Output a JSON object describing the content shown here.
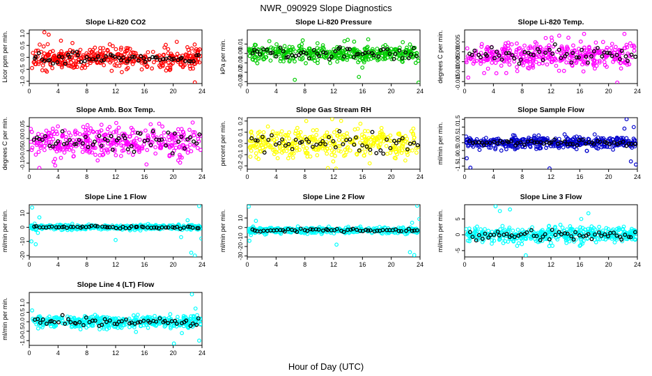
{
  "figure": {
    "title": "NWR_090929  Slope Diagnostics",
    "xlabel": "Hour of Day (UTC)"
  },
  "chart_data": [
    {
      "type": "scatter",
      "title": "Slope Li-820 CO2",
      "ylabel": "Licor ppm per min.",
      "color": "#ff0000",
      "xlim": [
        0,
        24
      ],
      "ylim": [
        -1.1,
        1.15
      ],
      "xticks": [
        0,
        4,
        8,
        12,
        16,
        20,
        24
      ],
      "yticks": [
        -1.0,
        -0.5,
        0.0,
        0.5,
        1.0
      ],
      "ytick_labels": [
        "-1.0",
        "-0.5",
        "0.0",
        "0.5",
        "1.0"
      ],
      "center": -0.05,
      "spread": 0.22,
      "black_spread": 0.12,
      "n_points": 380,
      "n_black": 60,
      "outliers": [
        [
          2.1,
          1.05
        ],
        [
          2.7,
          0.95
        ],
        [
          2.3,
          -0.55
        ],
        [
          3.2,
          -0.45
        ],
        [
          4.4,
          0.7
        ],
        [
          6.0,
          0.6
        ],
        [
          7.3,
          -0.45
        ],
        [
          19.6,
          -0.45
        ],
        [
          23.0,
          -1.05
        ],
        [
          20.5,
          0.65
        ]
      ]
    },
    {
      "type": "scatter",
      "title": "Slope Li-820 Pressure",
      "ylabel": "kPa per min.",
      "color": "#00cc00",
      "xlim": [
        0,
        24
      ],
      "ylim": [
        -0.032,
        0.025
      ],
      "xticks": [
        0,
        4,
        8,
        12,
        16,
        20,
        24
      ],
      "yticks": [
        -0.03,
        -0.02,
        -0.01,
        0.0,
        0.01
      ],
      "ytick_labels": [
        "-0.03",
        "-0.02",
        "-0.01",
        "0.00",
        "0.01"
      ],
      "center": 0.0,
      "spread": 0.0045,
      "black_spread": 0.003,
      "n_points": 380,
      "n_black": 55,
      "outliers": [
        [
          6.6,
          -0.028
        ],
        [
          15.5,
          -0.025
        ],
        [
          23.8,
          -0.031
        ],
        [
          7.7,
          0.014
        ],
        [
          16.8,
          0.015
        ],
        [
          21.6,
          0.012
        ],
        [
          13.5,
          0.013
        ],
        [
          23.4,
          -0.01
        ]
      ]
    },
    {
      "type": "scatter",
      "title": "Slope Li-820 Temp.",
      "ylabel": "degrees C per min.",
      "color": "#ff00ff",
      "xlim": [
        0,
        24
      ],
      "ylim": [
        -0.016,
        0.011
      ],
      "xticks": [
        0,
        4,
        8,
        12,
        16,
        20,
        24
      ],
      "yticks": [
        -0.015,
        -0.01,
        -0.005,
        0.0,
        0.005
      ],
      "ytick_labels": [
        "-0.015",
        "-0.010",
        "-0.005",
        "0.000",
        "0.005"
      ],
      "center": -0.002,
      "spread": 0.0035,
      "black_spread": 0.002,
      "n_points": 380,
      "n_black": 55,
      "outliers": [
        [
          21.2,
          -0.0155
        ],
        [
          16.6,
          0.009
        ],
        [
          22.2,
          0.009
        ],
        [
          0.5,
          -0.013
        ]
      ]
    },
    {
      "type": "scatter",
      "title": "Slope Amb. Box Temp.",
      "ylabel": "degrees C per min.",
      "color": "#ff00ff",
      "xlim": [
        0,
        24
      ],
      "ylim": [
        -0.125,
        0.085
      ],
      "xticks": [
        0,
        4,
        8,
        12,
        16,
        20,
        24
      ],
      "yticks": [
        -0.1,
        -0.05,
        0.0,
        0.05
      ],
      "ytick_labels": [
        "-0.10",
        "-0.05",
        "0.00",
        "0.05"
      ],
      "center": -0.01,
      "spread": 0.03,
      "black_spread": 0.02,
      "n_points": 380,
      "n_black": 55,
      "outliers": [
        [
          1.4,
          -0.12
        ],
        [
          3.6,
          -0.11
        ],
        [
          22.7,
          0.065
        ]
      ]
    },
    {
      "type": "scatter",
      "title": "Slope Gas Stream RH",
      "ylabel": "percent per min.",
      "color": "#ffff00",
      "xlim": [
        0,
        24
      ],
      "ylim": [
        -0.23,
        0.23
      ],
      "xticks": [
        0,
        4,
        8,
        12,
        16,
        20,
        24
      ],
      "yticks": [
        -0.2,
        -0.1,
        0.0,
        0.1,
        0.2
      ],
      "ytick_labels": [
        "-0.2",
        "-0.1",
        "0.0",
        "0.1",
        "0.2"
      ],
      "center": 0.0,
      "spread": 0.07,
      "black_spread": 0.05,
      "n_points": 380,
      "n_black": 50,
      "outliers": [
        [
          11.2,
          -0.22
        ],
        [
          8.2,
          0.2
        ]
      ]
    },
    {
      "type": "scatter",
      "title": "Slope Sample Flow",
      "ylabel": "ml/min per min.",
      "color": "#0000cc",
      "xlim": [
        0,
        24
      ],
      "ylim": [
        -1.7,
        1.6
      ],
      "xticks": [
        0,
        4,
        8,
        12,
        16,
        20,
        24
      ],
      "yticks": [
        -1.5,
        -1.0,
        -0.5,
        0.0,
        0.5,
        1.0,
        1.5
      ],
      "ytick_labels": [
        "-1.5",
        "-1.0",
        "-0.5",
        "0.0",
        "0.5",
        "1.0",
        "1.5"
      ],
      "center": 0.0,
      "spread": 0.18,
      "black_spread": 0.1,
      "n_points": 420,
      "n_black": 55,
      "outliers": [
        [
          0.8,
          -1.6
        ],
        [
          0.3,
          -1.0
        ],
        [
          11.8,
          -1.65
        ],
        [
          22.5,
          1.5
        ],
        [
          23.5,
          1.0
        ],
        [
          23.1,
          -1.2
        ],
        [
          23.8,
          -1.4
        ],
        [
          22.2,
          0.9
        ]
      ]
    },
    {
      "type": "scatter",
      "title": "Slope Line 1 Flow",
      "ylabel": "ml/min per min.",
      "color": "#00ffff",
      "xlim": [
        0,
        24
      ],
      "ylim": [
        -21,
        16
      ],
      "xticks": [
        0,
        4,
        8,
        12,
        16,
        20,
        24
      ],
      "yticks": [
        -20,
        -10,
        0,
        10
      ],
      "ytick_labels": [
        "-20",
        "-10",
        "0",
        "10"
      ],
      "center": 0.0,
      "spread": 0.9,
      "black_spread": 0.4,
      "n_points": 420,
      "n_black": 55,
      "outliers": [
        [
          0.4,
          14
        ],
        [
          0.3,
          -10
        ],
        [
          0.9,
          -12
        ],
        [
          1.2,
          -4
        ],
        [
          1.4,
          7
        ],
        [
          12.0,
          -9
        ],
        [
          21.1,
          -7
        ],
        [
          22.5,
          -18
        ],
        [
          23.0,
          -20
        ],
        [
          23.6,
          15
        ],
        [
          23.9,
          -8
        ],
        [
          22.0,
          5
        ]
      ]
    },
    {
      "type": "scatter",
      "title": "Slope Line 2 Flow",
      "ylabel": "ml/min per min.",
      "color": "#00ffff",
      "xlim": [
        0,
        24
      ],
      "ylim": [
        -31,
        24
      ],
      "xticks": [
        0,
        4,
        8,
        12,
        16,
        20,
        24
      ],
      "yticks": [
        -30,
        -20,
        -10,
        0,
        10
      ],
      "ytick_labels": [
        "-30",
        "-20",
        "-10",
        "0",
        "10"
      ],
      "center": -3,
      "spread": 1.5,
      "black_spread": 0.8,
      "n_points": 420,
      "n_black": 55,
      "outliers": [
        [
          0.2,
          22
        ],
        [
          0.3,
          -14
        ],
        [
          0.5,
          -8
        ],
        [
          1.2,
          7
        ],
        [
          12.4,
          -18
        ],
        [
          22.6,
          -26
        ],
        [
          23.2,
          -29
        ],
        [
          23.6,
          23
        ],
        [
          23.9,
          9
        ],
        [
          22.9,
          5
        ]
      ]
    },
    {
      "type": "scatter",
      "title": "Slope Line 3 Flow",
      "ylabel": "ml/min per min.",
      "color": "#00ffff",
      "xlim": [
        0,
        24
      ],
      "ylim": [
        -7,
        9.5
      ],
      "xticks": [
        0,
        4,
        8,
        12,
        16,
        20,
        24
      ],
      "yticks": [
        -5,
        0,
        5
      ],
      "ytick_labels": [
        "-5",
        "0",
        "5"
      ],
      "center": 0.0,
      "spread": 1.2,
      "black_spread": 0.8,
      "n_points": 420,
      "n_black": 55,
      "outliers": [
        [
          4.3,
          9
        ],
        [
          4.9,
          7.5
        ],
        [
          6.3,
          8
        ],
        [
          8.5,
          -6.5
        ],
        [
          7.3,
          -3.5
        ],
        [
          12.2,
          -3.5
        ],
        [
          17.2,
          6.8
        ],
        [
          16.2,
          5
        ]
      ]
    },
    {
      "type": "scatter",
      "title": "Slope Line 4 (LT) Flow",
      "ylabel": "ml/min per min.",
      "color": "#00ffff",
      "xlim": [
        0,
        24
      ],
      "ylim": [
        -1.25,
        1.55
      ],
      "xticks": [
        0,
        4,
        8,
        12,
        16,
        20,
        24
      ],
      "yticks": [
        -1.0,
        -0.5,
        0.0,
        0.5,
        1.0
      ],
      "ytick_labels": [
        "-1.0",
        "-0.5",
        "0.0",
        "0.5",
        "1.0"
      ],
      "center": 0.0,
      "spread": 0.16,
      "black_spread": 0.12,
      "n_points": 420,
      "n_black": 55,
      "outliers": [
        [
          0.4,
          0.6
        ],
        [
          20.1,
          -1.15
        ],
        [
          22.6,
          1.45
        ],
        [
          23.6,
          -1.0
        ],
        [
          23.1,
          0.7
        ],
        [
          21.2,
          -0.6
        ]
      ]
    }
  ]
}
